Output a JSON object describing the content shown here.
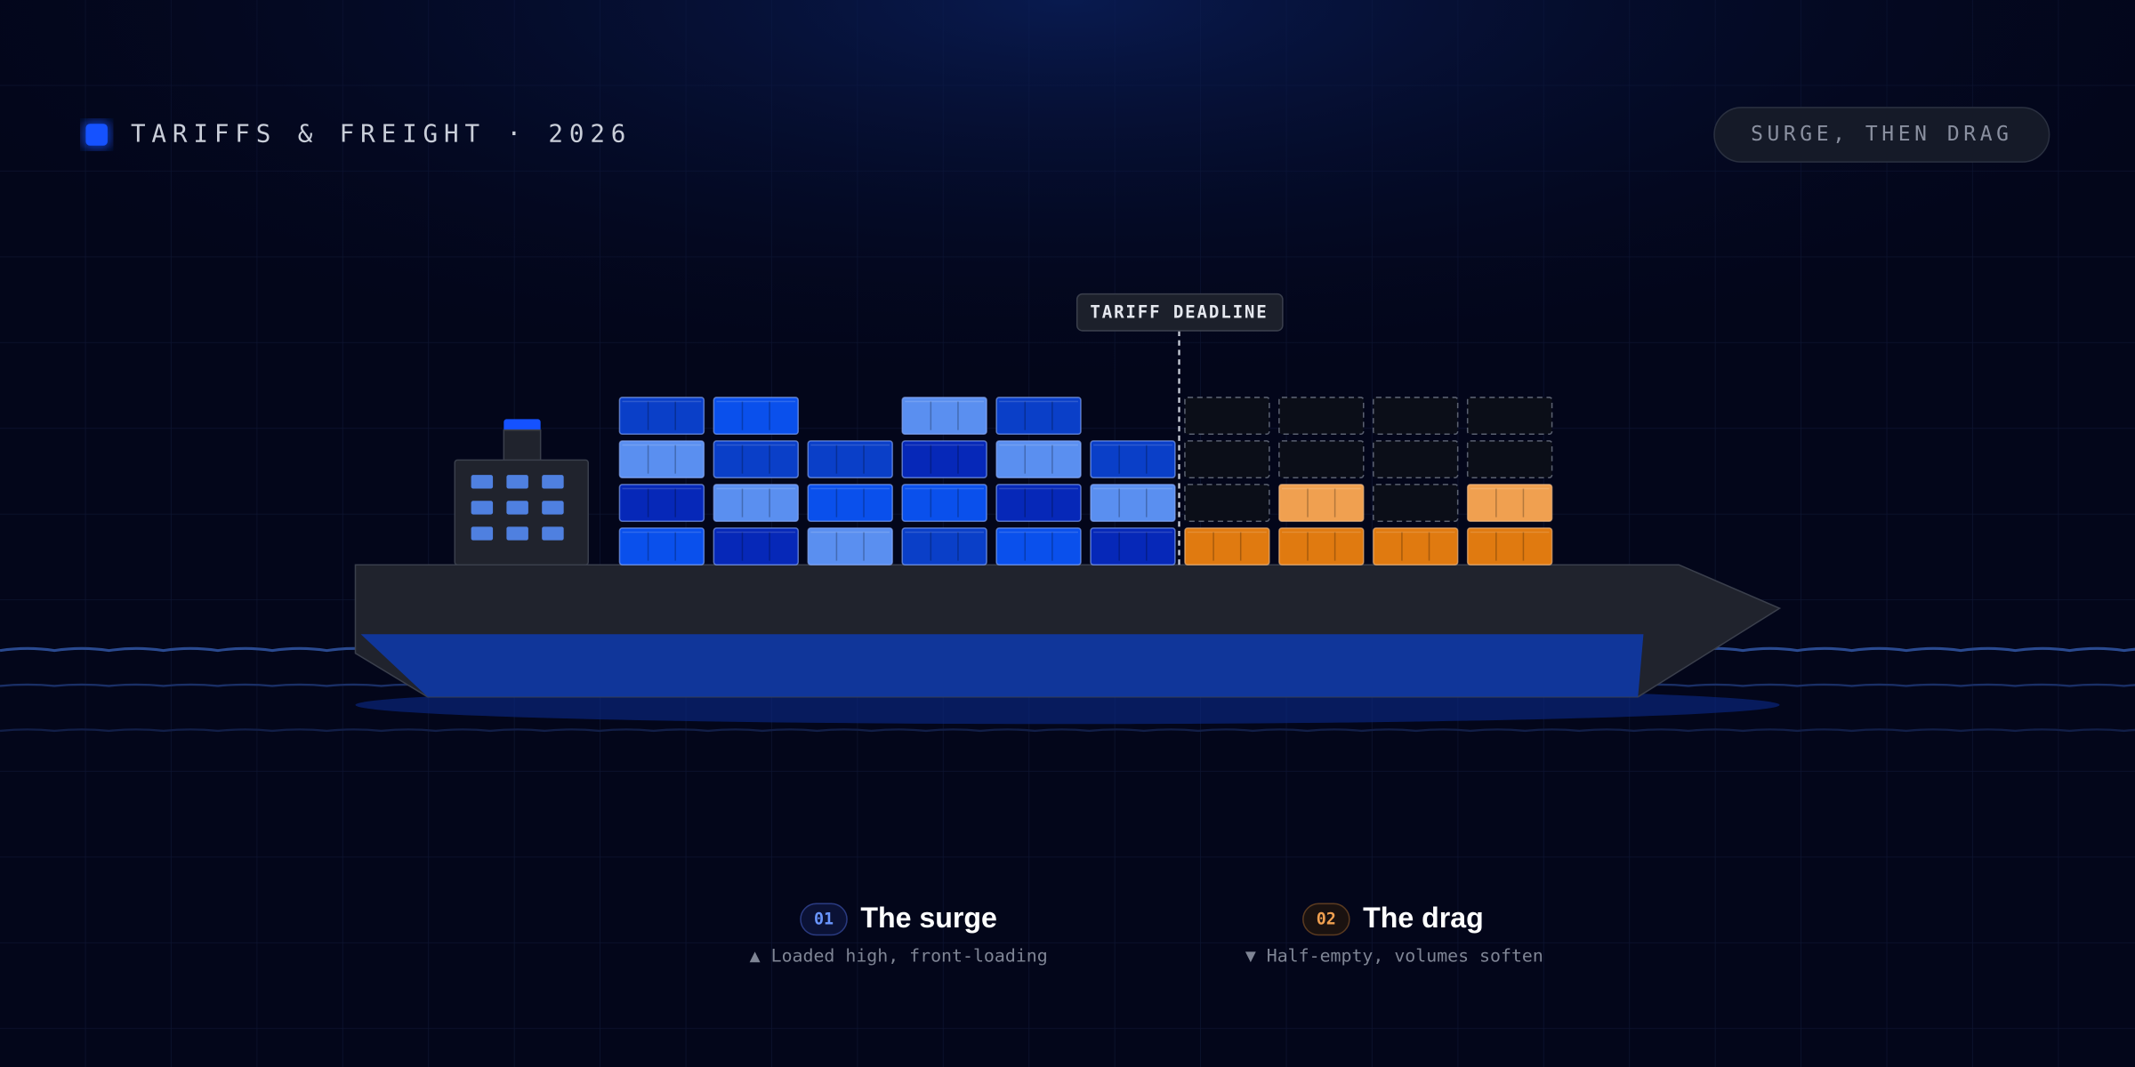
{
  "header": {
    "title": "TARIFFS & FREIGHT · 2026",
    "badge": "SURGE, THEN DRAG"
  },
  "marker": {
    "label": "TARIFF DEADLINE"
  },
  "legend": [
    {
      "number": "01",
      "title": "The surge",
      "caption": "▲ Loaded high, front-loading"
    },
    {
      "number": "02",
      "title": "The drag",
      "caption": "▼ Half-empty, volumes soften"
    }
  ]
}
